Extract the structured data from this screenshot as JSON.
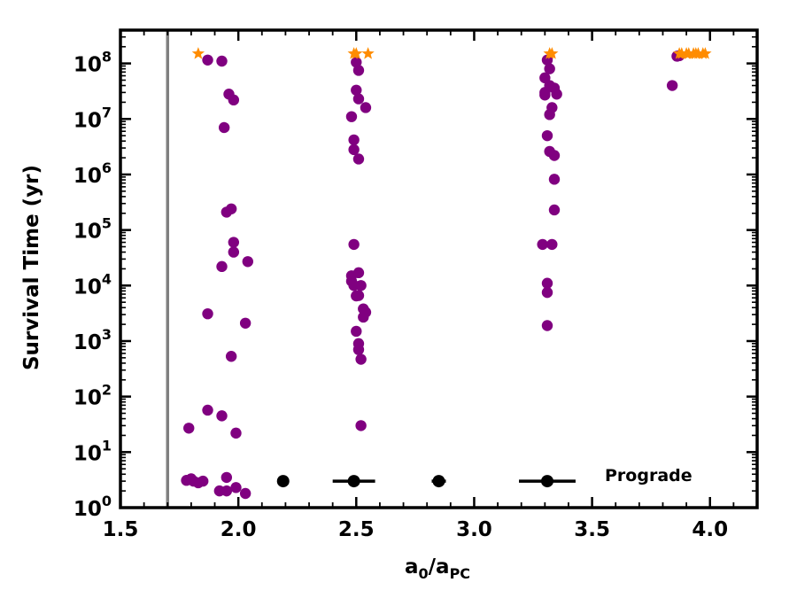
{
  "chart_data": {
    "type": "scatter",
    "xlabel": {
      "base": "a",
      "sub0": "0",
      "slash": "/a",
      "sub1": "PC"
    },
    "ylabel": "Survival Time (yr)",
    "xlim": [
      1.5,
      4.2
    ],
    "ylim_log10": [
      0,
      8.6
    ],
    "yscale": "log",
    "grid": false,
    "x_ticks": [
      {
        "value": 1.5,
        "label": "1.5"
      },
      {
        "value": 2.0,
        "label": "2.0"
      },
      {
        "value": 2.5,
        "label": "2.5"
      },
      {
        "value": 3.0,
        "label": "3.0"
      },
      {
        "value": 3.5,
        "label": "3.5"
      },
      {
        "value": 4.0,
        "label": "4.0"
      }
    ],
    "y_ticks": [
      {
        "exp": 0,
        "base": "10",
        "sup": "0"
      },
      {
        "exp": 1,
        "base": "10",
        "sup": "1"
      },
      {
        "exp": 2,
        "base": "10",
        "sup": "2"
      },
      {
        "exp": 3,
        "base": "10",
        "sup": "3"
      },
      {
        "exp": 4,
        "base": "10",
        "sup": "4"
      },
      {
        "exp": 5,
        "base": "10",
        "sup": "5"
      },
      {
        "exp": 6,
        "base": "10",
        "sup": "6"
      },
      {
        "exp": 7,
        "base": "10",
        "sup": "7"
      },
      {
        "exp": 8,
        "base": "10",
        "sup": "8"
      }
    ],
    "vertical_line": {
      "x": 1.7,
      "color": "#808080"
    },
    "colors": {
      "unstable": "#800080",
      "survived": "#ff8c00",
      "resonance": "#000000"
    },
    "unstable": [
      [
        1.78,
        3.1
      ],
      [
        1.8,
        3.3
      ],
      [
        1.81,
        3.0
      ],
      [
        1.83,
        2.8
      ],
      [
        1.85,
        3.0
      ],
      [
        1.79,
        27
      ],
      [
        1.87,
        57
      ],
      [
        1.87,
        3100
      ],
      [
        1.87,
        115000000.0
      ],
      [
        1.92,
        2.0
      ],
      [
        1.93,
        45
      ],
      [
        1.93,
        22000
      ],
      [
        1.93,
        110000000.0
      ],
      [
        1.94,
        7000000.0
      ],
      [
        1.95,
        2.0
      ],
      [
        1.95,
        3.5
      ],
      [
        1.95,
        210000.0
      ],
      [
        1.96,
        28000000.0
      ],
      [
        1.97,
        530
      ],
      [
        1.97,
        240000.0
      ],
      [
        1.98,
        60000.0
      ],
      [
        1.98,
        40000.0
      ],
      [
        1.98,
        22000000.0
      ],
      [
        1.99,
        22
      ],
      [
        1.99,
        2.3
      ],
      [
        2.03,
        2100
      ],
      [
        2.03,
        1.8
      ],
      [
        2.04,
        27000
      ],
      [
        2.48,
        15000
      ],
      [
        2.48,
        12000
      ],
      [
        2.48,
        11000000.0
      ],
      [
        2.49,
        2800000.0
      ],
      [
        2.49,
        4200000.0
      ],
      [
        2.49,
        55000
      ],
      [
        2.49,
        10000
      ],
      [
        2.5,
        6500
      ],
      [
        2.5,
        1500
      ],
      [
        2.5,
        33000000.0
      ],
      [
        2.5,
        105000000.0
      ],
      [
        2.51,
        900
      ],
      [
        2.51,
        700
      ],
      [
        2.51,
        17000
      ],
      [
        2.51,
        6600
      ],
      [
        2.51,
        1900000.0
      ],
      [
        2.51,
        75000000.0
      ],
      [
        2.51,
        23000000.0
      ],
      [
        2.52,
        30
      ],
      [
        2.52,
        10000
      ],
      [
        2.52,
        470
      ],
      [
        2.53,
        2700
      ],
      [
        2.53,
        3800
      ],
      [
        2.54,
        3300
      ],
      [
        2.54,
        16000000.0
      ],
      [
        3.29,
        55000
      ],
      [
        3.3,
        55000000.0
      ],
      [
        3.3,
        30000000.0
      ],
      [
        3.3,
        27000000.0
      ],
      [
        3.31,
        7500
      ],
      [
        3.31,
        1900.0
      ],
      [
        3.31,
        11000
      ],
      [
        3.31,
        5000000.0
      ],
      [
        3.31,
        115000000.0
      ],
      [
        3.32,
        2600000.0
      ],
      [
        3.32,
        40000000.0
      ],
      [
        3.32,
        12000000.0
      ],
      [
        3.32,
        80000000.0
      ],
      [
        3.33,
        55000
      ],
      [
        3.33,
        16000000.0
      ],
      [
        3.34,
        2200000.0
      ],
      [
        3.34,
        820000.0
      ],
      [
        3.34,
        36000000.0
      ],
      [
        3.34,
        230000.0
      ],
      [
        3.35,
        28000000.0
      ],
      [
        3.84,
        40000000.0
      ],
      [
        3.86,
        135000000.0
      ],
      [
        3.87,
        138000000.0
      ]
    ],
    "survived": [
      [
        1.83,
        150000000.0
      ],
      [
        2.49,
        150000000.0
      ],
      [
        2.5,
        150000000.0
      ],
      [
        2.55,
        150000000.0
      ],
      [
        3.32,
        150000000.0
      ],
      [
        3.33,
        150000000.0
      ],
      [
        3.87,
        150000000.0
      ],
      [
        3.88,
        150000000.0
      ],
      [
        3.9,
        150000000.0
      ],
      [
        3.91,
        150000000.0
      ],
      [
        3.93,
        150000000.0
      ],
      [
        3.94,
        150000000.0
      ],
      [
        3.95,
        150000000.0
      ],
      [
        3.97,
        150000000.0
      ],
      [
        3.98,
        150000000.0
      ]
    ],
    "resonances": [
      {
        "x": 2.19,
        "xerr": 0.0,
        "y": 3.0
      },
      {
        "x": 2.49,
        "xerr": 0.09,
        "y": 3.0
      },
      {
        "x": 2.85,
        "xerr": 0.03,
        "y": 3.0
      },
      {
        "x": 3.31,
        "xerr": 0.12,
        "y": 3.0
      }
    ],
    "annotation": "Prograde"
  }
}
